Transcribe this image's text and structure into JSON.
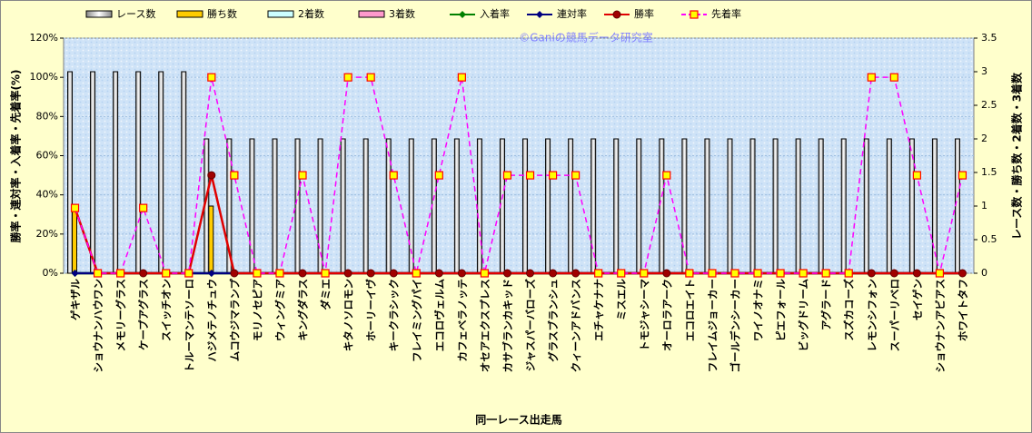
{
  "chart_data": {
    "type": "bar-line",
    "watermark": "©Ganiの競馬データ研究室",
    "y_label": "勝率・連対率・入着率・先着率(%)",
    "y2_label": "レース数・勝ち数・2着数・3着数",
    "x_label": "同一レース出走馬",
    "categories": [
      "ゲキザル",
      "ショウナンハウワン",
      "メモリーグラス",
      "ケープアグラス",
      "スイッチオン",
      "トルーマンテソーロ",
      "ハジメテノチュウ",
      "ムコウジマランプ",
      "モリノセピア",
      "ウィングミア",
      "キングダラス",
      "ダミエ",
      "キタノソロモン",
      "ホーリーイヴ",
      "キークラシック",
      "フレイミングパイ",
      "エコロヴェルム",
      "カフェベラノッテ",
      "オセアエクスプレス",
      "カサブランカキッド",
      "ジャスパーバローズ",
      "グラスブランシュ",
      "クィーンアドバンス",
      "エチャケナナ",
      "ミスエル",
      "トモジャシーマ",
      "オーロラアーク",
      "エコロエイト",
      "フレイムジョーカー",
      "ゴールデンシーカー",
      "ワイノオナミ",
      "ピエフォール",
      "ビッグドリーム",
      "アグラード",
      "スズカコーズ",
      "レモンシフォン",
      "スーパーリベロ",
      "セイゲン",
      "ショウナンアビアス",
      "ホワイトタフ"
    ],
    "ylim": [
      0,
      120
    ],
    "yticks": [
      {
        "value": 0,
        "label": "0%"
      },
      {
        "value": 20,
        "label": "20%"
      },
      {
        "value": 40,
        "label": "40%"
      },
      {
        "value": 60,
        "label": "60%"
      },
      {
        "value": 80,
        "label": "80%"
      },
      {
        "value": 100,
        "label": "100%"
      },
      {
        "value": 120,
        "label": "120%"
      }
    ],
    "y2lim": [
      0,
      3.5
    ],
    "y2ticks": [
      0,
      0.5,
      1,
      1.5,
      2,
      2.5,
      3,
      3.5
    ],
    "grid": true,
    "legend": "top",
    "series": [
      {
        "name": "レース数",
        "kind": "bar",
        "axis": "y2",
        "color": "#ffffff",
        "values": [
          3,
          3,
          3,
          3,
          3,
          3,
          2,
          2,
          2,
          2,
          2,
          2,
          2,
          2,
          2,
          2,
          2,
          2,
          2,
          2,
          2,
          2,
          2,
          2,
          2,
          2,
          2,
          2,
          2,
          2,
          2,
          2,
          2,
          2,
          2,
          2,
          2,
          2,
          2,
          2
        ]
      },
      {
        "name": "勝ち数",
        "kind": "bar",
        "axis": "y2",
        "color": "#ffcc00",
        "values": [
          1,
          0,
          0,
          0,
          0,
          0,
          1,
          0,
          0,
          0,
          0,
          0,
          0,
          0,
          0,
          0,
          0,
          0,
          0,
          0,
          0,
          0,
          0,
          0,
          0,
          0,
          0,
          0,
          0,
          0,
          0,
          0,
          0,
          0,
          0,
          0,
          0,
          0,
          0,
          0
        ]
      },
      {
        "name": "2着数",
        "kind": "bar",
        "axis": "y2",
        "color": "#ccffff",
        "values": [
          0,
          0,
          0,
          0,
          0,
          0,
          0,
          0,
          0,
          0,
          0,
          0,
          0,
          0,
          0,
          0,
          0,
          0,
          0,
          0,
          0,
          0,
          0,
          0,
          0,
          0,
          0,
          0,
          0,
          0,
          0,
          0,
          0,
          0,
          0,
          0,
          0,
          0,
          0,
          0
        ]
      },
      {
        "name": "3着数",
        "kind": "bar",
        "axis": "y2",
        "color": "#ff99cc",
        "values": [
          0,
          0,
          0,
          0,
          0,
          0,
          0,
          0,
          0,
          0,
          0,
          0,
          0,
          0,
          0,
          0,
          0,
          0,
          0,
          0,
          0,
          0,
          0,
          0,
          0,
          0,
          0,
          0,
          0,
          0,
          0,
          0,
          0,
          0,
          0,
          0,
          0,
          0,
          0,
          0
        ]
      },
      {
        "name": "入着率",
        "kind": "line",
        "marker": "diamond",
        "color": "#008000",
        "values": [
          0,
          0,
          0,
          0,
          0,
          0,
          0,
          0,
          0,
          0,
          0,
          0,
          0,
          0,
          0,
          0,
          0,
          0,
          0,
          0,
          0,
          0,
          0,
          0,
          0,
          0,
          0,
          0,
          0,
          0,
          0,
          0,
          0,
          0,
          0,
          0,
          0,
          0,
          0,
          0
        ]
      },
      {
        "name": "連対率",
        "kind": "line",
        "marker": "diamond",
        "color": "#000080",
        "values": [
          0,
          0,
          0,
          0,
          0,
          0,
          0,
          0,
          0,
          0,
          0,
          0,
          0,
          0,
          0,
          0,
          0,
          0,
          0,
          0,
          0,
          0,
          0,
          0,
          0,
          0,
          0,
          0,
          0,
          0,
          0,
          0,
          0,
          0,
          0,
          0,
          0,
          0,
          0,
          0
        ]
      },
      {
        "name": "勝率",
        "kind": "line",
        "marker": "circle",
        "color": "#e00000",
        "values": [
          33.3,
          0,
          0,
          0,
          0,
          0,
          50,
          0,
          0,
          0,
          0,
          0,
          0,
          0,
          0,
          0,
          0,
          0,
          0,
          0,
          0,
          0,
          0,
          0,
          0,
          0,
          0,
          0,
          0,
          0,
          0,
          0,
          0,
          0,
          0,
          0,
          0,
          0,
          0,
          0
        ]
      },
      {
        "name": "先着率",
        "kind": "line",
        "marker": "square",
        "dashed": true,
        "color": "#ff00ff",
        "values": [
          33.3,
          0,
          0,
          33.3,
          0,
          0,
          100,
          50,
          0,
          0,
          50,
          0,
          100,
          100,
          50,
          0,
          50,
          100,
          0,
          50,
          50,
          50,
          50,
          0,
          0,
          0,
          50,
          0,
          0,
          0,
          0,
          0,
          0,
          0,
          0,
          100,
          100,
          50,
          0,
          50
        ]
      }
    ]
  }
}
